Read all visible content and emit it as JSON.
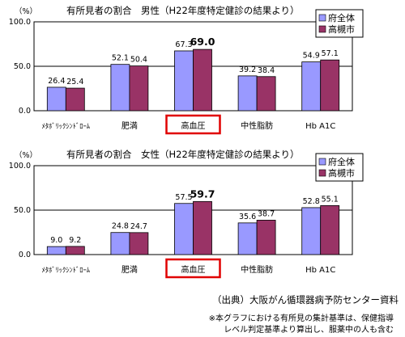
{
  "chart_data": [
    {
      "type": "bar",
      "title": "有所見者の割合　男性（H22年度特定健診の結果より）",
      "ylabel": "（%）",
      "ylim": [
        0,
        100
      ],
      "yticks": [
        "100.0",
        "50.0",
        "0.0"
      ],
      "categories": [
        "ﾒﾀﾎﾞﾘｯｸｼﾝﾄﾞﾛｰﾑ",
        "肥満",
        "高血圧",
        "中性脂肪",
        "Hb A1C"
      ],
      "highlight_category": "高血圧",
      "legend": "top-right",
      "series": [
        {
          "name": "府全体",
          "color": "#9999ff",
          "values": [
            26.4,
            52.1,
            67.3,
            39.2,
            54.9
          ]
        },
        {
          "name": "高槻市",
          "color": "#993366",
          "values": [
            25.4,
            50.4,
            69.0,
            38.4,
            57.1
          ]
        }
      ],
      "labels": [
        [
          "26.4",
          "25.4"
        ],
        [
          "52.1",
          "50.4"
        ],
        [
          "67.3",
          "69.0"
        ],
        [
          "39.2",
          "38.4"
        ],
        [
          "54.9",
          "57.1"
        ]
      ]
    },
    {
      "type": "bar",
      "title": "有所見者の割合　女性（H22年度特定健診の結果より）",
      "ylabel": "（%）",
      "ylim": [
        0,
        100
      ],
      "yticks": [
        "100.0",
        "50.0",
        "0.0"
      ],
      "categories": [
        "ﾒﾀﾎﾞﾘｯｸｼﾝﾄﾞﾛｰﾑ",
        "肥満",
        "高血圧",
        "中性脂肪",
        "Hb A1C"
      ],
      "highlight_category": "高血圧",
      "legend": "top-right",
      "series": [
        {
          "name": "府全体",
          "color": "#9999ff",
          "values": [
            9.0,
            24.8,
            57.5,
            35.6,
            52.8
          ]
        },
        {
          "name": "高槻市",
          "color": "#993366",
          "values": [
            9.2,
            24.7,
            59.7,
            38.7,
            55.1
          ]
        }
      ],
      "labels": [
        [
          "9.0",
          "9.2"
        ],
        [
          "24.8",
          "24.7"
        ],
        [
          "57.5",
          "59.7"
        ],
        [
          "35.6",
          "38.7"
        ],
        [
          "52.8",
          "55.1"
        ]
      ]
    }
  ],
  "colors": {
    "highlight_box": "#e00000",
    "grid": "#000000"
  },
  "footer": {
    "source": "（出典）大阪がん循環器病予防センター資料",
    "note_line1": "※本グラフにおける有所見の集計基準は、保健指導",
    "note_line2": "レベル判定基準より算出し、服薬中の人も含む"
  }
}
